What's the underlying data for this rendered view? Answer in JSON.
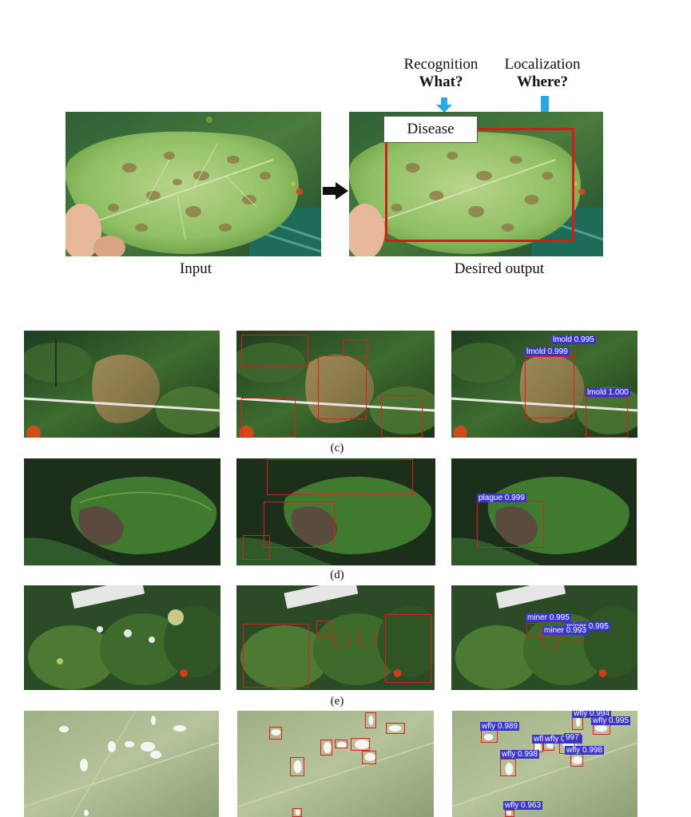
{
  "header_line": "",
  "figure_top": {
    "recognition_title": "Recognition",
    "recognition_question": "What?",
    "localization_title": "Localization",
    "localization_question": "Where?",
    "disease_label": "Disease",
    "input_caption": "Input",
    "output_caption": "Desired output"
  },
  "rows": [
    {
      "caption": "(c)",
      "detections": [
        {
          "label": "lmold 0.995"
        },
        {
          "label": "lmold 0.999"
        },
        {
          "label": "lmold 1.000"
        }
      ]
    },
    {
      "caption": "(d)",
      "detections": [
        {
          "label": "plague 0.999"
        }
      ]
    },
    {
      "caption": "(e)",
      "detections": [
        {
          "label": "miner 0.995"
        },
        {
          "label": "miner 0.995"
        },
        {
          "label": "miner 0.993"
        }
      ]
    },
    {
      "caption": "",
      "detections": [
        {
          "label": "wfly 0.994"
        },
        {
          "label": "wfly 0.989"
        },
        {
          "label": "wfly 0.995"
        },
        {
          "label": "wfly"
        },
        {
          "label": "wfly 0.943"
        },
        {
          "label": "997"
        },
        {
          "label": "wfly 0.998"
        },
        {
          "label": "wfly 0.998"
        },
        {
          "label": "wfly 0.963"
        }
      ]
    }
  ],
  "colors": {
    "box_red": "#e41b1b",
    "tag_blue": "#3a36c8",
    "arrow_blue": "#29a9e6"
  }
}
